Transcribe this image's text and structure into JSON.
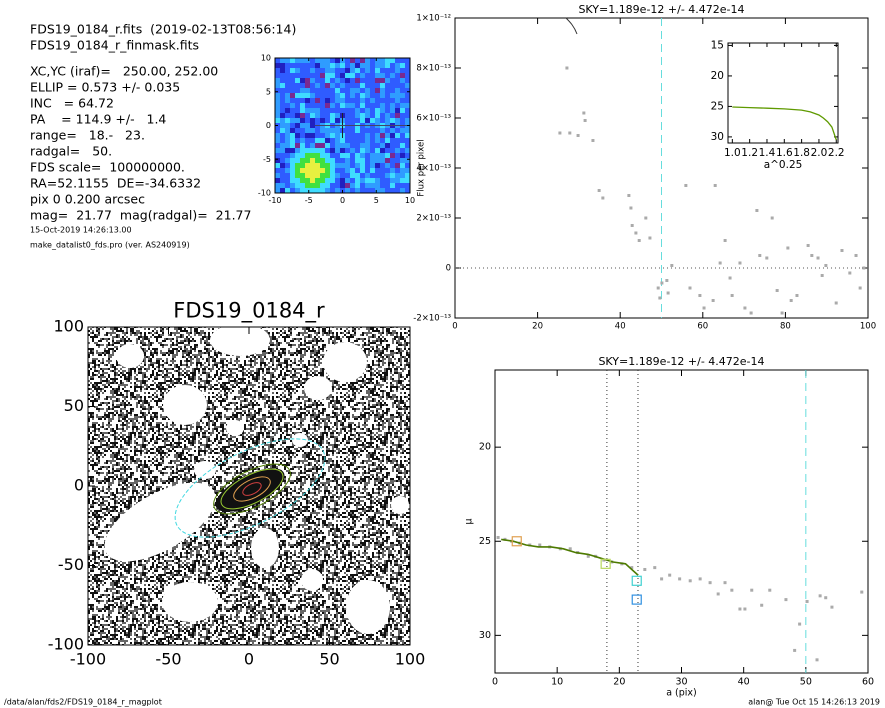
{
  "header": {
    "lines": [
      "FDS19_0184_r.fits  (2019-02-13T08:56:14)",
      "FDS19_0184_r_finmask.fits",
      "XC,YC (iraf)=   250.00, 252.00",
      "ELLIP = 0.573 +/- 0.035",
      "INC   = 64.72",
      "PA    = 114.9 +/-   1.4",
      "range=   18.-   23.",
      "radgal=   50.",
      "FDS scale=  100000000.",
      "RA=52.1155  DE=-34.6332",
      "pix 0 0.200 arcsec",
      "mag=  21.77  mag(radgal)=  21.77"
    ],
    "small_lines": [
      "15-Oct-2019 14:26:13.00",
      "make_datalist0_fds.pro (ver. AS240919)"
    ]
  },
  "footer": {
    "left": "/data/alan/fds2/FDS19_0184_r_magplot",
    "right": "alan@  Tue Oct 15 14:26:13 2019"
  },
  "chart_data": [
    {
      "type": "image",
      "xlim": [
        -10,
        10
      ],
      "ylim": [
        -10,
        10
      ],
      "xticks": [
        -10,
        -5,
        0,
        5,
        10
      ],
      "yticks": [
        -10,
        -5,
        0,
        5,
        10
      ]
    },
    {
      "type": "scatter",
      "title": "SKY=1.189e-12 +/- 4.472e-14",
      "y_label": "Flux per pixel",
      "x": [
        27.1,
        25.4,
        27.8,
        29.8,
        31.2,
        31.5,
        33.4,
        34.9,
        35.8,
        42.1,
        42.6,
        42.9,
        43.8,
        44.6,
        46.2,
        47.2,
        50.1,
        49.6,
        49.2,
        51.3,
        51.6,
        52.5,
        55.9,
        56.9,
        59.3,
        60.3,
        62.5,
        63.0,
        64.2,
        65.4,
        66.6,
        67.1,
        69.0,
        70.2,
        71.7,
        73.1,
        73.8,
        75.5,
        76.8,
        78.0,
        79.2,
        80.6,
        81.4,
        82.8,
        85.5,
        86.4,
        87.9,
        88.9,
        89.8,
        92.3,
        93.7,
        95.6,
        97.1,
        98.1,
        99.0
      ],
      "values": [
        8e-13,
        5.4e-13,
        5.4e-13,
        5.3e-13,
        6.2e-13,
        5.9e-13,
        5.1e-13,
        3.1e-13,
        2.8e-13,
        2.9e-13,
        2.4e-13,
        1.7e-13,
        1.4e-13,
        1.1e-13,
        2e-13,
        1.2e-13,
        -6e-14,
        -1.2e-13,
        -8e-14,
        -5e-14,
        -1e-13,
        1e-14,
        3.3e-13,
        -8e-14,
        -1.1e-13,
        -1.6e-13,
        -1.3e-13,
        3.3e-13,
        2e-14,
        1.1e-13,
        -4e-14,
        -1.1e-13,
        2e-14,
        -1.6e-13,
        -1.8e-13,
        2.3e-13,
        5e-14,
        4e-14,
        2e-13,
        -9e-14,
        -1.8e-13,
        8e-14,
        -1.3e-13,
        -1.1e-13,
        9e-14,
        5e-14,
        4e-14,
        -3e-14,
        1e-14,
        -1.4e-13,
        7e-14,
        -2e-14,
        5e-14,
        -8e-14,
        0
      ],
      "color": "#aaaaaa",
      "xlim": [
        0,
        100
      ],
      "ylim": [
        -2e-13,
        1e-12
      ],
      "xticks": [
        0,
        20,
        40,
        60,
        80,
        100
      ],
      "yticks": [
        {
          "value": -2e-13,
          "label": "-2×10⁻¹³"
        },
        0,
        {
          "value": 2e-13,
          "label": "2×10⁻¹³"
        },
        {
          "value": 4e-13,
          "label": "4×10⁻¹³"
        },
        {
          "value": 6e-13,
          "label": "6×10⁻¹³"
        },
        {
          "value": 8e-13,
          "label": "8×10⁻¹³"
        },
        {
          "value": 1e-12,
          "label": "1×10⁻¹²"
        }
      ],
      "vlines": [
        {
          "x": 50,
          "color": "#66dddd",
          "dash": "8 5"
        }
      ],
      "hlines": [
        {
          "y": 0,
          "color": "#555555",
          "dash": "1 3"
        }
      ]
    },
    {
      "type": "line",
      "x_label": "a^0.25",
      "x": [
        1.0,
        1.2,
        1.4,
        1.6,
        1.7,
        1.8,
        1.9,
        2.0,
        2.05,
        2.1,
        2.15,
        2.2
      ],
      "values": [
        25.1,
        25.2,
        25.3,
        25.4,
        25.5,
        25.6,
        25.9,
        26.4,
        26.9,
        27.5,
        28.4,
        30.5
      ],
      "color": "#5f9a00",
      "xlim": [
        0.95,
        2.22
      ],
      "ylim": [
        31,
        14.6
      ],
      "xticks": [
        {
          "value": 1,
          "label": "1.0"
        },
        1.2,
        1.4,
        1.6,
        1.8,
        {
          "value": 2,
          "label": "2.0"
        },
        2.2
      ],
      "yticks": [
        15,
        20,
        25,
        30
      ]
    },
    {
      "type": "image",
      "title": "FDS19_0184_r",
      "xlim": [
        -100,
        100
      ],
      "ylim": [
        -100,
        100
      ],
      "xticks": [
        -100,
        -50,
        0,
        50,
        100
      ],
      "yticks": [
        -100,
        -50,
        0,
        50,
        100
      ]
    },
    {
      "type": "scatter",
      "title": "SKY=1.189e-12 +/- 4.472e-14",
      "x_label": "a (pix)",
      "y_label": "μ",
      "x": [
        0.5,
        1.6,
        2.7,
        4.0,
        5.6,
        7.2,
        8.8,
        10.5,
        12.1,
        13.3,
        15.0,
        16.2,
        17.5,
        18.8,
        20.4,
        22.0,
        24.1,
        25.7,
        26.8,
        28.1,
        29.7,
        31.4,
        33.0,
        34.6,
        35.9,
        37.0,
        38.1,
        39.4,
        40.2,
        41.3,
        42.9,
        44.2,
        46.8,
        49.0,
        50.2,
        52.3,
        53.2,
        54.2,
        59.0,
        48.2,
        51.8
      ],
      "values": [
        24.8,
        24.9,
        25.0,
        25.1,
        25.2,
        25.2,
        25.3,
        25.4,
        25.4,
        25.6,
        25.8,
        25.8,
        26.0,
        26.1,
        26.2,
        26.4,
        26.5,
        26.4,
        27.0,
        26.8,
        27.0,
        27.1,
        27.0,
        27.2,
        27.8,
        27.2,
        27.6,
        28.6,
        28.6,
        27.6,
        28.4,
        27.6,
        28.1,
        29.4,
        28.2,
        27.9,
        28.0,
        28.5,
        27.7,
        30.8,
        31.3
      ],
      "color": "#aaaaaa",
      "line": {
        "x": [
          1,
          3,
          5,
          7,
          9,
          11,
          13,
          15,
          17,
          19,
          21,
          22,
          23
        ],
        "values": [
          24.9,
          25.0,
          25.2,
          25.3,
          25.3,
          25.4,
          25.6,
          25.7,
          25.9,
          26.1,
          26.2,
          26.5,
          26.8
        ],
        "color": "#4d7a00"
      },
      "markers": [
        {
          "x": 3.5,
          "y": 25.0,
          "color": "#e0a050"
        },
        {
          "x": 17.8,
          "y": 26.2,
          "color": "#b8d860"
        },
        {
          "x": 22.8,
          "y": 27.1,
          "color": "#40d0d0"
        },
        {
          "x": 22.8,
          "y": 28.1,
          "color": "#3090e0"
        }
      ],
      "xlim": [
        0,
        60
      ],
      "ylim": [
        32,
        15.9
      ],
      "xticks": [
        0,
        10,
        20,
        30,
        40,
        50,
        60
      ],
      "yticks": [
        20,
        25,
        30
      ],
      "vlines": [
        {
          "x": 18,
          "color": "#333333",
          "dash": "1 3"
        },
        {
          "x": 23,
          "color": "#333333",
          "dash": "1 3"
        },
        {
          "x": 50,
          "color": "#66dddd",
          "dash": "8 5"
        }
      ]
    }
  ]
}
